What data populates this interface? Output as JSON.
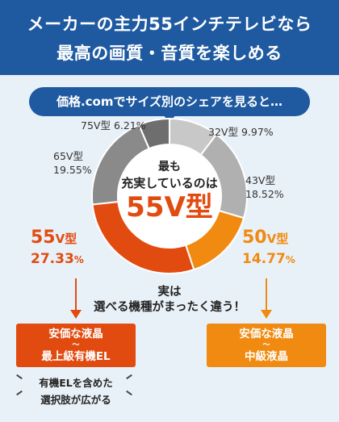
{
  "header": {
    "line1": "メーカーの主力55インチテレビなら",
    "line2": "最高の画質・音質を楽しめる"
  },
  "bubble": {
    "text": "価格.comでサイズ別のシェアを見ると…"
  },
  "center": {
    "line1": "最も",
    "line2": "充実しているのは",
    "line3": "55V型"
  },
  "labels": {
    "s75": {
      "name": "75V型",
      "pct": "6.21%"
    },
    "s32": {
      "name": "32V型",
      "pct": "9.97%"
    },
    "s65": {
      "name": "65V型",
      "pct": "19.55%"
    },
    "s43": {
      "name": "43V型",
      "pct": "18.52%"
    },
    "s55": {
      "name": "55",
      "unit": "V型",
      "pct": "27.33",
      "pct_unit": "%"
    },
    "s50": {
      "name": "50",
      "unit": "V型",
      "pct": "14.77",
      "pct_unit": "%"
    }
  },
  "middle": {
    "line1": "実は",
    "line2": "選べる機種がまったく違う！"
  },
  "box_left": {
    "line1": "安価な液晶",
    "sep": "〜",
    "line3": "最上級有機EL"
  },
  "box_right": {
    "line1": "安価な液晶",
    "sep": "〜",
    "line3": "中級液晶"
  },
  "note": {
    "line1": "有機ELを含めた",
    "line2": "選択肢が広がる"
  },
  "chart_data": {
    "type": "pie",
    "donut": true,
    "categories": [
      "32V型",
      "43V型",
      "50V型",
      "55V型",
      "65V型",
      "75V型"
    ],
    "values": [
      9.97,
      18.52,
      14.77,
      27.33,
      19.55,
      6.21
    ],
    "colors": [
      "#c8c8c8",
      "#b0b0b0",
      "#f08a10",
      "#e24b10",
      "#8a8a8a",
      "#6e6e6e"
    ],
    "unit": "%"
  }
}
